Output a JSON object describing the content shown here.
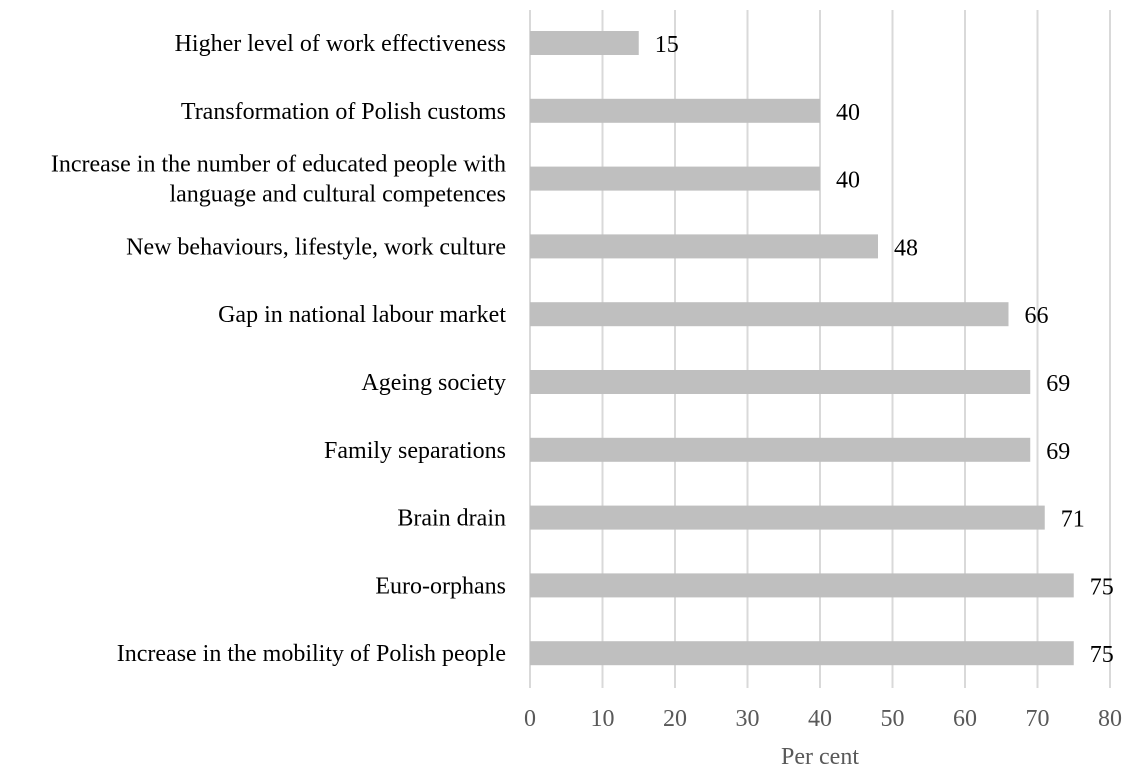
{
  "chart_data": {
    "type": "bar",
    "orientation": "horizontal",
    "categories": [
      "Higher level of work effectiveness",
      "Transformation of Polish customs",
      "Increase in the number of educated people with language and cultural competences",
      "New behaviours, lifestyle, work culture",
      "Gap in national labour market",
      "Ageing society",
      "Family separations",
      "Brain drain",
      "Euro-orphans",
      "Increase in the mobility of Polish people"
    ],
    "category_lines": [
      [
        "Higher level of work effectiveness"
      ],
      [
        "Transformation of Polish customs"
      ],
      [
        "Increase in the number of educated people with",
        "language and cultural competences"
      ],
      [
        "New behaviours, lifestyle, work culture"
      ],
      [
        "Gap in national labour market"
      ],
      [
        "Ageing society"
      ],
      [
        "Family separations"
      ],
      [
        "Brain drain"
      ],
      [
        "Euro-orphans"
      ],
      [
        "Increase in the mobility of Polish people"
      ]
    ],
    "values": [
      15,
      40,
      40,
      48,
      66,
      69,
      69,
      71,
      75,
      75
    ],
    "title": "",
    "xlabel": "Per cent",
    "ylabel": "",
    "xlim": [
      0,
      80
    ],
    "xticks": [
      0,
      10,
      20,
      30,
      40,
      50,
      60,
      70,
      80
    ],
    "grid": true,
    "data_labels": true,
    "legend": "none",
    "colors": {
      "bar": "#bfbfbf",
      "grid": "#d9d9d9",
      "axis_text": "#595959",
      "label_text": "#000000"
    }
  }
}
